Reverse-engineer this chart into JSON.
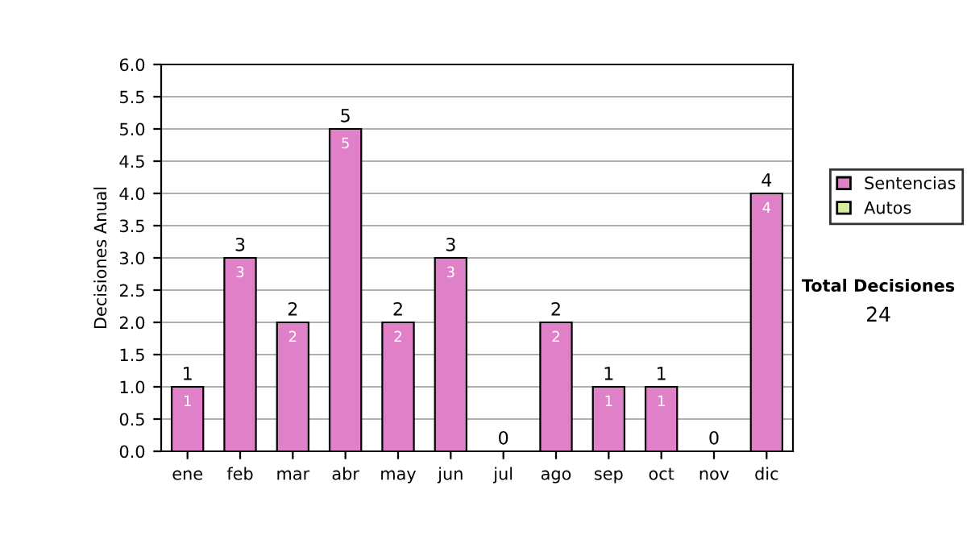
{
  "chart_data": {
    "type": "bar",
    "stacked": true,
    "ylabel": "Decisiones Anual",
    "categories": [
      "ene",
      "feb",
      "mar",
      "abr",
      "may",
      "jun",
      "jul",
      "ago",
      "sep",
      "oct",
      "nov",
      "dic"
    ],
    "series": [
      {
        "name": "Sentencias",
        "color": "#e080c8",
        "values": [
          1,
          3,
          2,
          5,
          2,
          3,
          0,
          2,
          1,
          1,
          0,
          4
        ],
        "value_labels": [
          "1",
          "3",
          "2",
          "5",
          "2",
          "3",
          null,
          "2",
          "1",
          "1",
          null,
          "4"
        ]
      },
      {
        "name": "Autos",
        "color": "#d8eca0",
        "values": [
          0,
          0,
          0,
          0,
          0,
          0,
          0,
          0,
          0,
          0,
          0,
          0
        ]
      }
    ],
    "totals": [
      "1",
      "3",
      "2",
      "5",
      "2",
      "3",
      "0",
      "2",
      "1",
      "1",
      "0",
      "4"
    ],
    "ylim": [
      0,
      6
    ],
    "yticks": [
      "0.0",
      "0.5",
      "1.0",
      "1.5",
      "2.0",
      "2.5",
      "3.0",
      "3.5",
      "4.0",
      "4.5",
      "5.0",
      "5.5",
      "6.0"
    ],
    "grid": "y",
    "legend": "right",
    "annotations": [
      "Total Decisiones",
      "24"
    ]
  }
}
